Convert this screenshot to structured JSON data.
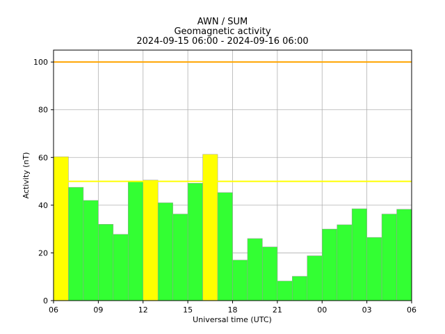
{
  "chart_data": {
    "type": "bar",
    "title": [
      "AWN / SUM",
      "Geomagnetic activity",
      "2024-09-15 06:00 - 2024-09-16 06:00"
    ],
    "xlabel": "Universal time (UTC)",
    "ylabel": "Activity (nT)",
    "ylim": [
      0,
      105
    ],
    "yticks": [
      0,
      20,
      40,
      60,
      80,
      100
    ],
    "xlim_hours": [
      0,
      24
    ],
    "xticks": [
      {
        "hour": 0,
        "label": "06"
      },
      {
        "hour": 3,
        "label": "09"
      },
      {
        "hour": 6,
        "label": "12"
      },
      {
        "hour": 9,
        "label": "15"
      },
      {
        "hour": 12,
        "label": "18"
      },
      {
        "hour": 15,
        "label": "21"
      },
      {
        "hour": 18,
        "label": "00"
      },
      {
        "hour": 21,
        "label": "03"
      },
      {
        "hour": 24,
        "label": "06"
      }
    ],
    "grid": true,
    "bars": [
      {
        "start": "06:00",
        "value": 60.3,
        "level": "elevated"
      },
      {
        "start": "07:00",
        "value": 47.5,
        "level": "normal"
      },
      {
        "start": "08:00",
        "value": 42.0,
        "level": "normal"
      },
      {
        "start": "09:00",
        "value": 32.0,
        "level": "normal"
      },
      {
        "start": "10:00",
        "value": 27.8,
        "level": "normal"
      },
      {
        "start": "11:00",
        "value": 50.0,
        "level": "normal"
      },
      {
        "start": "12:00",
        "value": 50.5,
        "level": "elevated"
      },
      {
        "start": "13:00",
        "value": 41.0,
        "level": "normal"
      },
      {
        "start": "14:00",
        "value": 36.3,
        "level": "normal"
      },
      {
        "start": "15:00",
        "value": 49.2,
        "level": "normal"
      },
      {
        "start": "16:00",
        "value": 61.3,
        "level": "elevated"
      },
      {
        "start": "17:00",
        "value": 45.3,
        "level": "normal"
      },
      {
        "start": "18:00",
        "value": 17.0,
        "level": "normal"
      },
      {
        "start": "19:00",
        "value": 26.0,
        "level": "normal"
      },
      {
        "start": "20:00",
        "value": 22.5,
        "level": "normal"
      },
      {
        "start": "21:00",
        "value": 8.2,
        "level": "normal"
      },
      {
        "start": "22:00",
        "value": 10.2,
        "level": "normal"
      },
      {
        "start": "23:00",
        "value": 18.8,
        "level": "normal"
      },
      {
        "start": "00:00",
        "value": 30.0,
        "level": "normal"
      },
      {
        "start": "01:00",
        "value": 31.8,
        "level": "normal"
      },
      {
        "start": "02:00",
        "value": 38.5,
        "level": "normal"
      },
      {
        "start": "03:00",
        "value": 26.5,
        "level": "normal"
      },
      {
        "start": "04:00",
        "value": 36.3,
        "level": "normal"
      },
      {
        "start": "05:00",
        "value": 38.3,
        "level": "normal"
      }
    ],
    "thresholds": [
      {
        "value": 50,
        "color": "#ffff00"
      },
      {
        "value": 100,
        "color": "#ffa500"
      }
    ],
    "colors": {
      "normal": "#33ff33",
      "elevated": "#ffff00",
      "grid": "#b0b0b0"
    }
  }
}
